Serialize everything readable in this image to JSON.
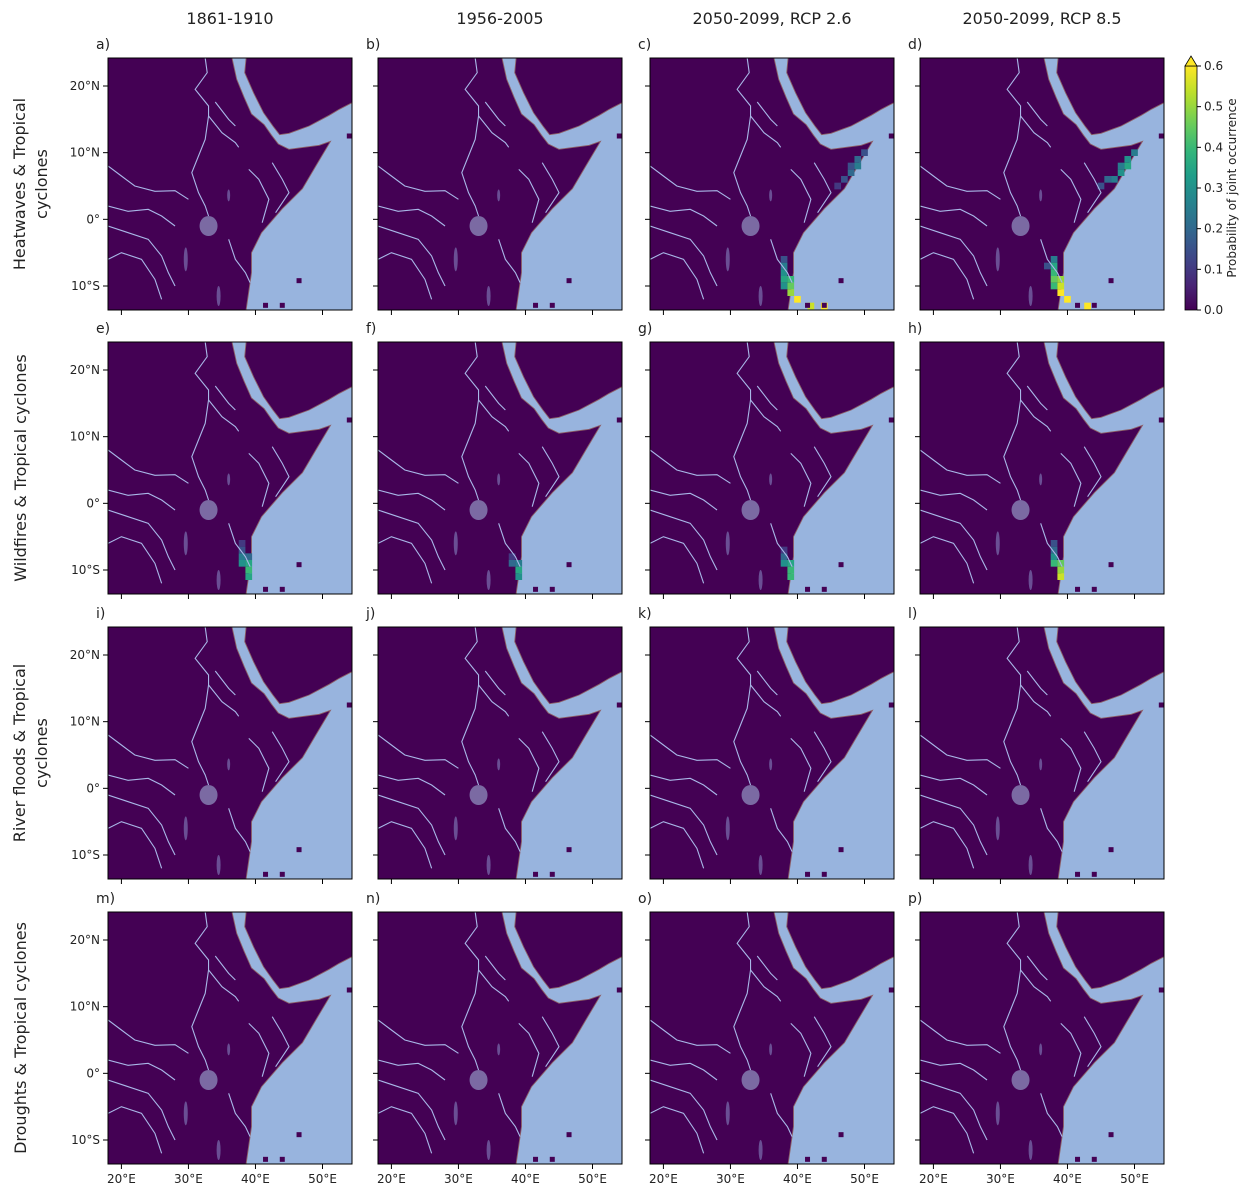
{
  "column_titles": [
    "1861-1910",
    "1956-2005",
    "2050-2099, RCP 2.6",
    "2050-2099, RCP 8.5"
  ],
  "row_labels": [
    [
      "Heatwaves & Tropical",
      "cyclones"
    ],
    [
      "Wildfires & Tropical cyclones"
    ],
    [
      "River floods & Tropical",
      "cyclones"
    ],
    [
      "Droughts & Tropical cyclones"
    ]
  ],
  "xlim": [
    18,
    54.4
  ],
  "ylim": [
    -13.6,
    24.2
  ],
  "xticks": [
    {
      "value": 20,
      "label": "20°E"
    },
    {
      "value": 30,
      "label": "30°E"
    },
    {
      "value": 40,
      "label": "40°E"
    },
    {
      "value": 50,
      "label": "50°E"
    }
  ],
  "yticks": [
    {
      "value": 20,
      "label": "20°N"
    },
    {
      "value": 10,
      "label": "10°N"
    },
    {
      "value": 0,
      "label": "0°"
    },
    {
      "value": -10,
      "label": "10°S"
    }
  ],
  "colorbar": {
    "label": "Probability of joint occurrence",
    "lim": [
      0,
      0.6
    ],
    "ticks": [
      {
        "value": 0,
        "label": "0.0"
      },
      0.1,
      0.2,
      0.3,
      0.4,
      0.5,
      0.6
    ]
  },
  "panels": [
    {
      "label": "a)",
      "cells": []
    },
    {
      "label": "b)",
      "cells": []
    },
    {
      "label": "c)",
      "cells": [
        {
          "lon": 38,
          "lat": -6,
          "value": 0.15
        },
        {
          "lon": 38,
          "lat": -7,
          "value": 0.25
        },
        {
          "lon": 38,
          "lat": -8,
          "value": 0.3
        },
        {
          "lon": 38,
          "lat": -9,
          "value": 0.35
        },
        {
          "lon": 39,
          "lat": -9,
          "value": 0.4
        },
        {
          "lon": 38,
          "lat": -10,
          "value": 0.3
        },
        {
          "lon": 39,
          "lat": -10,
          "value": 0.45
        },
        {
          "lon": 39,
          "lat": -11,
          "value": 0.5
        },
        {
          "lon": 40,
          "lat": -12,
          "value": 0.6
        },
        {
          "lon": 42,
          "lat": -13,
          "value": 0.55
        },
        {
          "lon": 44,
          "lat": -13,
          "value": 0.6
        },
        {
          "lon": 46,
          "lat": 5,
          "value": 0.1
        },
        {
          "lon": 47,
          "lat": 6,
          "value": 0.15
        },
        {
          "lon": 48,
          "lat": 7,
          "value": 0.2
        },
        {
          "lon": 49,
          "lat": 8,
          "value": 0.25
        },
        {
          "lon": 48,
          "lat": 8,
          "value": 0.15
        },
        {
          "lon": 49,
          "lat": 9,
          "value": 0.2
        },
        {
          "lon": 50,
          "lat": 10,
          "value": 0.15
        }
      ]
    },
    {
      "label": "d)",
      "cells": [
        {
          "lon": 37,
          "lat": -7,
          "value": 0.15
        },
        {
          "lon": 38,
          "lat": -6,
          "value": 0.25
        },
        {
          "lon": 38,
          "lat": -7,
          "value": 0.35
        },
        {
          "lon": 38,
          "lat": -8,
          "value": 0.4
        },
        {
          "lon": 38,
          "lat": -9,
          "value": 0.45
        },
        {
          "lon": 39,
          "lat": -9,
          "value": 0.5
        },
        {
          "lon": 38,
          "lat": -10,
          "value": 0.4
        },
        {
          "lon": 39,
          "lat": -10,
          "value": 0.55
        },
        {
          "lon": 39,
          "lat": -11,
          "value": 0.6
        },
        {
          "lon": 40,
          "lat": -12,
          "value": 0.6
        },
        {
          "lon": 43,
          "lat": -13,
          "value": 0.6
        },
        {
          "lon": 45,
          "lat": 5,
          "value": 0.15
        },
        {
          "lon": 46,
          "lat": 6,
          "value": 0.2
        },
        {
          "lon": 47,
          "lat": 6,
          "value": 0.25
        },
        {
          "lon": 48,
          "lat": 7,
          "value": 0.3
        },
        {
          "lon": 49,
          "lat": 8,
          "value": 0.35
        },
        {
          "lon": 48,
          "lat": 8,
          "value": 0.25
        },
        {
          "lon": 49,
          "lat": 9,
          "value": 0.3
        },
        {
          "lon": 50,
          "lat": 10,
          "value": 0.25
        }
      ]
    },
    {
      "label": "e)",
      "cells": [
        {
          "lon": 38,
          "lat": -6,
          "value": 0.1
        },
        {
          "lon": 38,
          "lat": -7,
          "value": 0.15
        },
        {
          "lon": 38,
          "lat": -8,
          "value": 0.25
        },
        {
          "lon": 39,
          "lat": -8,
          "value": 0.2
        },
        {
          "lon": 38,
          "lat": -9,
          "value": 0.3
        },
        {
          "lon": 39,
          "lat": -9,
          "value": 0.35
        },
        {
          "lon": 39,
          "lat": -10,
          "value": 0.4
        },
        {
          "lon": 39,
          "lat": -11,
          "value": 0.35
        }
      ]
    },
    {
      "label": "f)",
      "cells": [
        {
          "lon": 38,
          "lat": -8,
          "value": 0.1
        },
        {
          "lon": 38,
          "lat": -9,
          "value": 0.2
        },
        {
          "lon": 39,
          "lat": -9,
          "value": 0.25
        },
        {
          "lon": 39,
          "lat": -10,
          "value": 0.35
        },
        {
          "lon": 39,
          "lat": -11,
          "value": 0.3
        }
      ]
    },
    {
      "label": "g)",
      "cells": [
        {
          "lon": 38,
          "lat": -7,
          "value": 0.1
        },
        {
          "lon": 38,
          "lat": -8,
          "value": 0.2
        },
        {
          "lon": 38,
          "lat": -9,
          "value": 0.3
        },
        {
          "lon": 39,
          "lat": -9,
          "value": 0.35
        },
        {
          "lon": 39,
          "lat": -10,
          "value": 0.4
        },
        {
          "lon": 39,
          "lat": -11,
          "value": 0.4
        }
      ]
    },
    {
      "label": "h)",
      "cells": [
        {
          "lon": 38,
          "lat": -6,
          "value": 0.15
        },
        {
          "lon": 38,
          "lat": -7,
          "value": 0.2
        },
        {
          "lon": 38,
          "lat": -8,
          "value": 0.3
        },
        {
          "lon": 38,
          "lat": -9,
          "value": 0.4
        },
        {
          "lon": 39,
          "lat": -9,
          "value": 0.45
        },
        {
          "lon": 39,
          "lat": -10,
          "value": 0.5
        },
        {
          "lon": 39,
          "lat": -11,
          "value": 0.55
        }
      ]
    },
    {
      "label": "i)",
      "cells": []
    },
    {
      "label": "j)",
      "cells": []
    },
    {
      "label": "k)",
      "cells": []
    },
    {
      "label": "l)",
      "cells": []
    },
    {
      "label": "m)",
      "cells": []
    },
    {
      "label": "n)",
      "cells": []
    },
    {
      "label": "o)",
      "cells": []
    },
    {
      "label": "p)",
      "cells": []
    }
  ]
}
